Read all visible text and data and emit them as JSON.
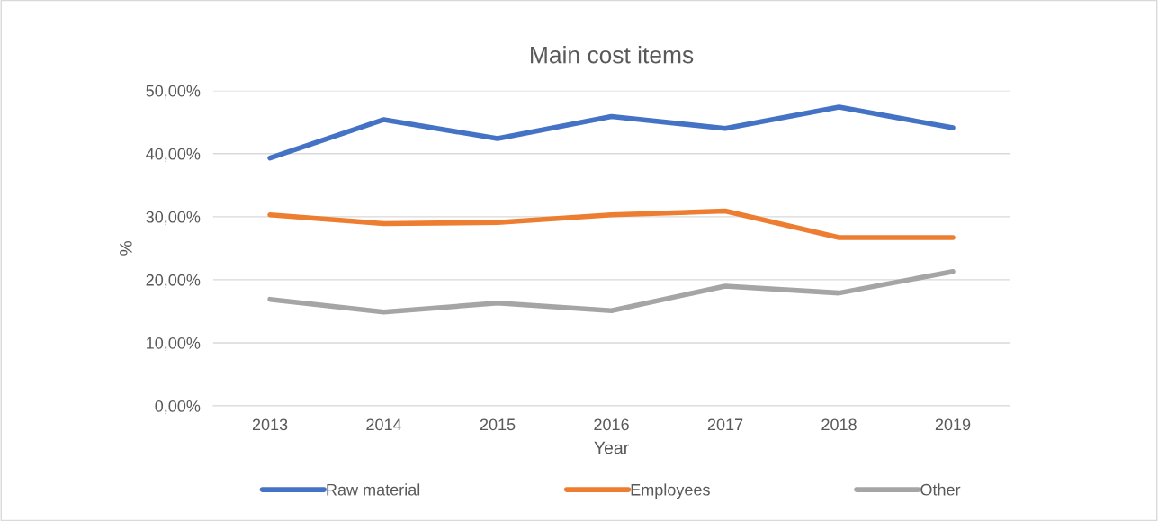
{
  "chart_data": {
    "type": "line",
    "title": "Main cost items",
    "xlabel": "Year",
    "ylabel": "%",
    "categories": [
      "2013",
      "2014",
      "2015",
      "2016",
      "2017",
      "2018",
      "2019"
    ],
    "series": [
      {
        "name": "Raw material",
        "color": "#4472c4",
        "values": [
          39.3,
          45.4,
          42.4,
          45.9,
          44.0,
          47.4,
          44.1
        ]
      },
      {
        "name": "Employees",
        "color": "#ed7d31",
        "values": [
          30.3,
          28.9,
          29.1,
          30.3,
          30.9,
          26.7,
          26.7
        ]
      },
      {
        "name": "Other",
        "color": "#a5a5a5",
        "values": [
          16.9,
          14.9,
          16.3,
          15.1,
          19.0,
          17.9,
          21.3
        ]
      }
    ],
    "ylim": [
      0,
      50
    ],
    "yticks": [
      {
        "value": 0,
        "label": "0,00%"
      },
      {
        "value": 10,
        "label": "10,00%"
      },
      {
        "value": 20,
        "label": "20,00%"
      },
      {
        "value": 30,
        "label": "30,00%"
      },
      {
        "value": 40,
        "label": "40,00%"
      },
      {
        "value": 50,
        "label": "50,00%"
      }
    ],
    "grid": "y",
    "legend": "bottom",
    "marker": "none",
    "line_style": "solid"
  }
}
